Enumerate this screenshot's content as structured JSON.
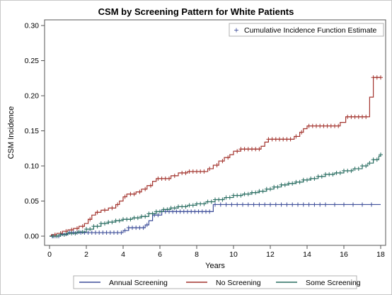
{
  "chart_data": {
    "type": "line",
    "title": "CSM by Screening Pattern for White Patients",
    "xlabel": "Years",
    "ylabel": "CSM Incidence",
    "xlim": [
      0,
      18
    ],
    "ylim": [
      0,
      0.3
    ],
    "xticks": [
      "0",
      "2",
      "4",
      "6",
      "8",
      "10",
      "12",
      "14",
      "16",
      "18"
    ],
    "yticks": [
      "0.00",
      "0.05",
      "0.10",
      "0.15",
      "0.20",
      "0.25",
      "0.30"
    ],
    "grid": false,
    "censor_legend": "Cumulative Incidence Function Estimate",
    "series": [
      {
        "name": "Annual Screening",
        "color": "#3f4f9a",
        "steps": [
          [
            0,
            0
          ],
          [
            0.6,
            0.003
          ],
          [
            1.0,
            0.005
          ],
          [
            2.2,
            0.005
          ],
          [
            4.0,
            0.008
          ],
          [
            4.3,
            0.012
          ],
          [
            5.2,
            0.016
          ],
          [
            5.4,
            0.022
          ],
          [
            5.6,
            0.03
          ],
          [
            6.1,
            0.035
          ],
          [
            8.9,
            0.045
          ],
          [
            18.0,
            0.045
          ]
        ],
        "censor": [
          0.15,
          0.3,
          0.5,
          0.7,
          0.9,
          1.1,
          1.3,
          1.5,
          1.7,
          1.9,
          2.1,
          2.3,
          2.5,
          2.7,
          2.9,
          3.1,
          3.3,
          3.5,
          3.7,
          3.9,
          4.1,
          4.3,
          4.5,
          4.7,
          4.9,
          5.1,
          5.3,
          5.7,
          5.9,
          6.1,
          6.3,
          6.5,
          6.7,
          6.9,
          7.1,
          7.3,
          7.5,
          7.7,
          7.9,
          8.1,
          8.3,
          8.5,
          8.7,
          9.0,
          9.3,
          9.6,
          9.9,
          10.2,
          10.5,
          10.8,
          11.1,
          11.4,
          11.7,
          12.0,
          12.3,
          12.6,
          12.9,
          13.2,
          13.5,
          13.8,
          14.1,
          14.4,
          14.7,
          15.0,
          15.5,
          16.0,
          16.5,
          17.0,
          17.5
        ]
      },
      {
        "name": "No Screening",
        "color": "#a3342e",
        "steps": [
          [
            0,
            0
          ],
          [
            0.1,
            0.002
          ],
          [
            0.4,
            0.004
          ],
          [
            0.7,
            0.007
          ],
          [
            1.0,
            0.009
          ],
          [
            1.3,
            0.011
          ],
          [
            1.6,
            0.014
          ],
          [
            1.9,
            0.018
          ],
          [
            2.1,
            0.024
          ],
          [
            2.3,
            0.03
          ],
          [
            2.5,
            0.034
          ],
          [
            2.8,
            0.037
          ],
          [
            3.2,
            0.04
          ],
          [
            3.6,
            0.045
          ],
          [
            3.8,
            0.05
          ],
          [
            4.0,
            0.056
          ],
          [
            4.2,
            0.06
          ],
          [
            4.7,
            0.063
          ],
          [
            5.0,
            0.067
          ],
          [
            5.3,
            0.072
          ],
          [
            5.6,
            0.078
          ],
          [
            5.8,
            0.082
          ],
          [
            6.6,
            0.086
          ],
          [
            7.0,
            0.09
          ],
          [
            7.5,
            0.092
          ],
          [
            8.6,
            0.096
          ],
          [
            8.9,
            0.101
          ],
          [
            9.2,
            0.107
          ],
          [
            9.5,
            0.112
          ],
          [
            9.8,
            0.116
          ],
          [
            10.0,
            0.121
          ],
          [
            10.4,
            0.124
          ],
          [
            11.5,
            0.128
          ],
          [
            11.7,
            0.134
          ],
          [
            11.9,
            0.138
          ],
          [
            13.3,
            0.142
          ],
          [
            13.6,
            0.148
          ],
          [
            13.8,
            0.153
          ],
          [
            14.0,
            0.157
          ],
          [
            15.8,
            0.162
          ],
          [
            16.1,
            0.17
          ],
          [
            17.4,
            0.198
          ],
          [
            17.6,
            0.226
          ],
          [
            18.0,
            0.226
          ]
        ],
        "censor": [
          0.3,
          0.6,
          0.9,
          1.2,
          1.5,
          1.8,
          2.2,
          2.6,
          3.0,
          3.4,
          3.7,
          4.1,
          4.4,
          4.6,
          4.9,
          5.2,
          5.5,
          5.9,
          6.1,
          6.3,
          6.5,
          6.8,
          7.2,
          7.4,
          7.6,
          7.8,
          8.0,
          8.2,
          8.4,
          8.7,
          9.1,
          9.4,
          9.7,
          10.2,
          10.4,
          10.6,
          10.8,
          11.0,
          11.2,
          11.4,
          11.9,
          12.1,
          12.3,
          12.5,
          12.7,
          12.9,
          13.1,
          13.4,
          13.7,
          14.1,
          14.3,
          14.5,
          14.7,
          14.9,
          15.1,
          15.3,
          15.5,
          15.7,
          16.2,
          16.4,
          16.6,
          16.8,
          17.0,
          17.2,
          17.6,
          17.8,
          18.0
        ]
      },
      {
        "name": "Some Screening",
        "color": "#2a6e62",
        "steps": [
          [
            0,
            0
          ],
          [
            0.5,
            0.002
          ],
          [
            1.0,
            0.004
          ],
          [
            1.5,
            0.006
          ],
          [
            2.0,
            0.01
          ],
          [
            2.4,
            0.014
          ],
          [
            2.8,
            0.018
          ],
          [
            3.2,
            0.02
          ],
          [
            3.6,
            0.022
          ],
          [
            4.0,
            0.024
          ],
          [
            4.5,
            0.026
          ],
          [
            5.0,
            0.028
          ],
          [
            5.4,
            0.032
          ],
          [
            5.8,
            0.035
          ],
          [
            6.2,
            0.038
          ],
          [
            6.6,
            0.04
          ],
          [
            7.0,
            0.042
          ],
          [
            7.5,
            0.044
          ],
          [
            8.0,
            0.046
          ],
          [
            8.5,
            0.049
          ],
          [
            9.0,
            0.052
          ],
          [
            9.5,
            0.055
          ],
          [
            10.0,
            0.058
          ],
          [
            10.5,
            0.06
          ],
          [
            11.0,
            0.062
          ],
          [
            11.4,
            0.064
          ],
          [
            11.8,
            0.067
          ],
          [
            12.2,
            0.07
          ],
          [
            12.6,
            0.073
          ],
          [
            13.0,
            0.075
          ],
          [
            13.4,
            0.077
          ],
          [
            13.8,
            0.08
          ],
          [
            14.2,
            0.082
          ],
          [
            14.6,
            0.085
          ],
          [
            15.0,
            0.088
          ],
          [
            15.5,
            0.09
          ],
          [
            16.0,
            0.093
          ],
          [
            16.5,
            0.096
          ],
          [
            17.0,
            0.1
          ],
          [
            17.3,
            0.104
          ],
          [
            17.6,
            0.109
          ],
          [
            17.9,
            0.114
          ],
          [
            18.0,
            0.116
          ]
        ],
        "censor": [
          0.2,
          0.4,
          0.6,
          0.8,
          1.0,
          1.2,
          1.4,
          1.6,
          1.8,
          2.0,
          2.2,
          2.4,
          2.6,
          2.8,
          3.0,
          3.2,
          3.4,
          3.6,
          3.8,
          4.0,
          4.2,
          4.4,
          4.6,
          4.8,
          5.0,
          5.2,
          5.4,
          5.6,
          5.8,
          6.0,
          6.2,
          6.4,
          6.6,
          6.8,
          7.0,
          7.2,
          7.4,
          7.6,
          7.8,
          8.0,
          8.2,
          8.4,
          8.6,
          8.8,
          9.0,
          9.2,
          9.4,
          9.6,
          9.8,
          10.0,
          10.2,
          10.4,
          10.6,
          10.8,
          11.0,
          11.2,
          11.4,
          11.6,
          11.8,
          12.0,
          12.2,
          12.4,
          12.6,
          12.8,
          13.0,
          13.2,
          13.4,
          13.6,
          13.8,
          14.0,
          14.2,
          14.4,
          14.6,
          14.8,
          15.0,
          15.2,
          15.4,
          15.6,
          15.8,
          16.0,
          16.2,
          16.4,
          16.6,
          16.8,
          17.0,
          17.2,
          17.4,
          17.6,
          17.8,
          18.0
        ]
      }
    ]
  }
}
